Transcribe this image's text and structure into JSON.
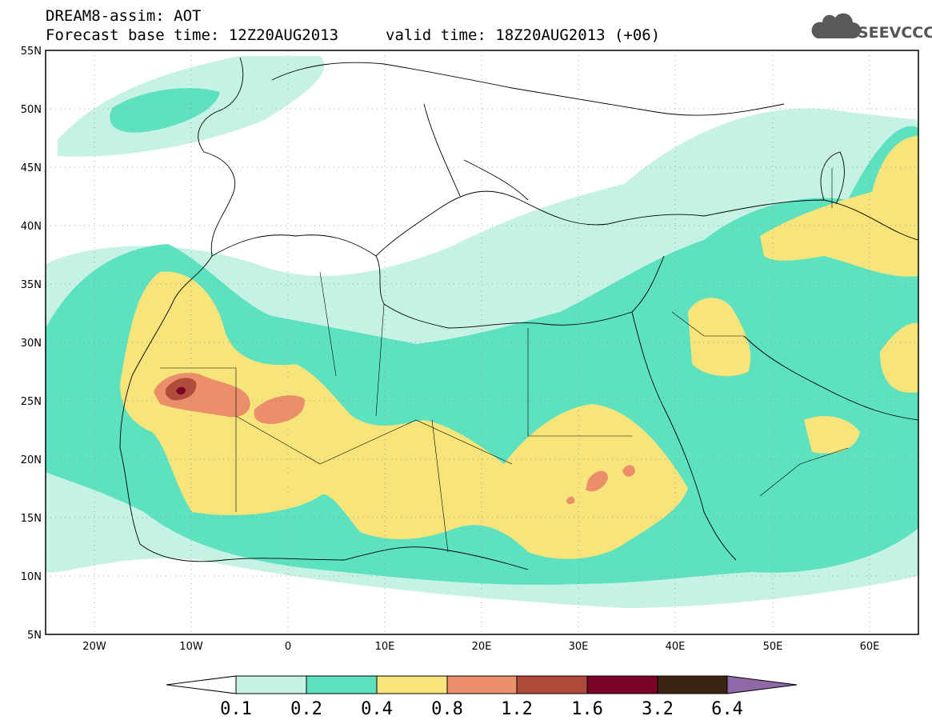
{
  "header": {
    "line1": "DREAM8-assim: AOT",
    "base_time": "Forecast base time: 12Z20AUG2013",
    "valid_time": "valid time: 18Z20AUG2013 (+06)"
  },
  "logo": {
    "text": "SEEVCCC",
    "icon": "cloud-icon"
  },
  "map": {
    "variable": "Aerosol optical thickness",
    "lon_range": [
      -25,
      65
    ],
    "lat_range": [
      5,
      55
    ],
    "lat_ticks": [
      "55N",
      "50N",
      "45N",
      "40N",
      "35N",
      "30N",
      "25N",
      "20N",
      "15N",
      "10N",
      "5N"
    ],
    "lon_ticks": [
      "20W",
      "10W",
      "0",
      "10E",
      "20E",
      "30E",
      "40E",
      "50E",
      "60E"
    ],
    "grid": "dotted"
  },
  "colorbar": {
    "levels": [
      "0.1",
      "0.2",
      "0.4",
      "0.8",
      "1.2",
      "1.6",
      "3.2",
      "6.4"
    ],
    "colors": {
      "below": "#ffffff",
      "c1": "#c6f2e6",
      "c2": "#5de1bf",
      "c3": "#f7e47a",
      "c4": "#eb8e6a",
      "c5": "#b04c3c",
      "c6": "#7a0326",
      "c7": "#3b2412",
      "above": "#9068a8"
    }
  }
}
